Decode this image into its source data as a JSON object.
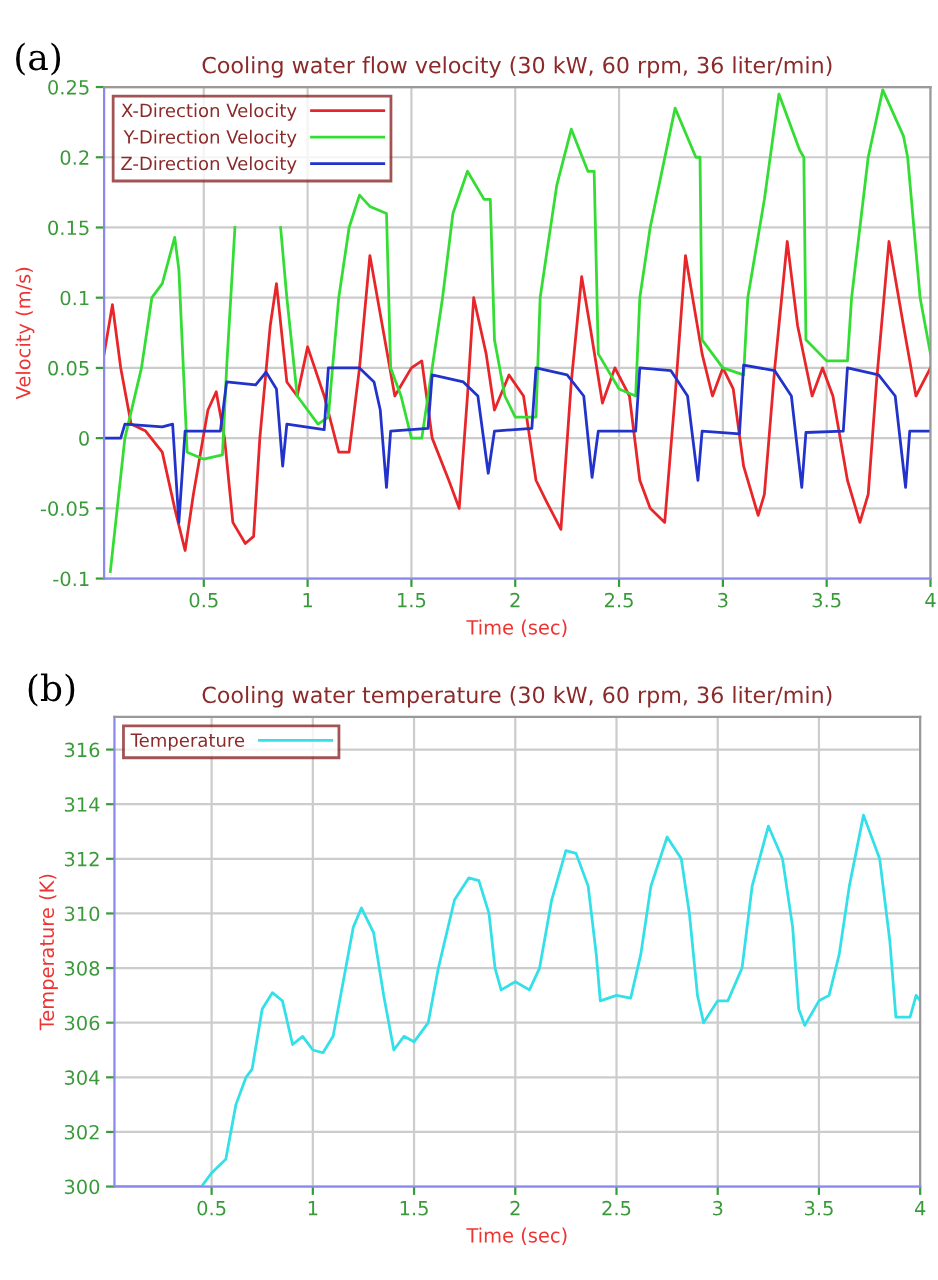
{
  "chart_data": [
    {
      "type": "line",
      "title": "Cooling water flow velocity (30 kW, 60 rpm, 36 liter/min)",
      "xlabel": "Time (sec)",
      "ylabel": "Velocity (m/s)",
      "annotations": [
        "(a)"
      ],
      "xlim": [
        0.02,
        4
      ],
      "ylim": [
        -0.1,
        0.25
      ],
      "xticks": [
        0.5,
        1,
        1.5,
        2,
        2.5,
        3,
        3.5,
        4
      ],
      "yticks": [
        -0.1,
        -0.05,
        0,
        0.05,
        0.1,
        0.15,
        0.2,
        0.25
      ],
      "grid": true,
      "legend": "top left",
      "series": [
        {
          "name": "X-Direction Velocity",
          "color": "#e8262a",
          "x": [
            0.02,
            0.06,
            0.1,
            0.15,
            0.22,
            0.3,
            0.36,
            0.41,
            0.45,
            0.52,
            0.56,
            0.6,
            0.64,
            0.7,
            0.74,
            0.77,
            0.82,
            0.85,
            0.9,
            0.95,
            1.0,
            1.08,
            1.15,
            1.2,
            1.25,
            1.3,
            1.36,
            1.42,
            1.5,
            1.55,
            1.6,
            1.68,
            1.73,
            1.77,
            1.8,
            1.86,
            1.9,
            1.97,
            2.04,
            2.1,
            2.15,
            2.22,
            2.27,
            2.32,
            2.36,
            2.42,
            2.48,
            2.55,
            2.6,
            2.65,
            2.72,
            2.77,
            2.82,
            2.9,
            2.95,
            3.0,
            3.05,
            3.1,
            3.17,
            3.2,
            3.25,
            3.31,
            3.36,
            3.43,
            3.48,
            3.53,
            3.6,
            3.66,
            3.7,
            3.74,
            3.8,
            3.87,
            3.93,
            4.0
          ],
          "values": [
            0.06,
            0.095,
            0.05,
            0.01,
            0.005,
            -0.01,
            -0.05,
            -0.08,
            -0.04,
            0.02,
            0.033,
            0.0,
            -0.06,
            -0.075,
            -0.07,
            0.0,
            0.08,
            0.11,
            0.04,
            0.03,
            0.065,
            0.03,
            -0.01,
            -0.01,
            0.05,
            0.13,
            0.08,
            0.03,
            0.05,
            0.055,
            0.0,
            -0.03,
            -0.05,
            0.03,
            0.1,
            0.06,
            0.02,
            0.045,
            0.03,
            -0.03,
            -0.045,
            -0.065,
            0.04,
            0.115,
            0.08,
            0.025,
            0.05,
            0.03,
            -0.03,
            -0.05,
            -0.06,
            0.03,
            0.13,
            0.06,
            0.03,
            0.05,
            0.035,
            -0.02,
            -0.055,
            -0.04,
            0.05,
            0.14,
            0.08,
            0.03,
            0.05,
            0.03,
            -0.03,
            -0.06,
            -0.04,
            0.04,
            0.14,
            0.08,
            0.03,
            0.05
          ]
        },
        {
          "name": "Y-Direction Velocity",
          "color": "#33dd33",
          "x": [
            0.05,
            0.12,
            0.2,
            0.25,
            0.3,
            0.36,
            0.38,
            0.42,
            0.5,
            0.59,
            0.61,
            0.65,
            0.72,
            0.8,
            0.85,
            0.87,
            0.9,
            0.95,
            1.05,
            1.1,
            1.12,
            1.15,
            1.2,
            1.25,
            1.3,
            1.38,
            1.4,
            1.45,
            1.5,
            1.55,
            1.6,
            1.65,
            1.7,
            1.77,
            1.85,
            1.88,
            1.9,
            1.95,
            2.0,
            2.1,
            2.12,
            2.15,
            2.2,
            2.27,
            2.35,
            2.38,
            2.4,
            2.5,
            2.58,
            2.6,
            2.65,
            2.77,
            2.87,
            2.89,
            2.9,
            3.0,
            3.1,
            3.12,
            3.2,
            3.27,
            3.37,
            3.39,
            3.4,
            3.5,
            3.6,
            3.62,
            3.7,
            3.77,
            3.87,
            3.89,
            3.95,
            4.0
          ],
          "values": [
            -0.095,
            0.0,
            0.05,
            0.1,
            0.11,
            0.143,
            0.12,
            -0.01,
            -0.015,
            -0.012,
            0.05,
            0.15,
            null,
            null,
            null,
            0.15,
            0.1,
            0.03,
            0.01,
            0.015,
            0.05,
            0.1,
            0.15,
            0.173,
            0.165,
            0.16,
            0.05,
            0.03,
            0.0,
            0.0,
            0.05,
            0.1,
            0.16,
            0.19,
            0.17,
            0.17,
            0.07,
            0.03,
            0.015,
            0.015,
            0.1,
            0.13,
            0.18,
            0.22,
            0.19,
            0.19,
            0.06,
            0.035,
            0.03,
            0.1,
            0.15,
            0.235,
            0.2,
            0.2,
            0.07,
            0.05,
            0.045,
            0.1,
            0.17,
            0.245,
            0.205,
            0.2,
            0.07,
            0.055,
            0.055,
            0.1,
            0.2,
            0.248,
            0.215,
            0.2,
            0.1,
            0.06
          ]
        },
        {
          "name": "Z-Direction Velocity",
          "color": "#2233cc",
          "x": [
            0.02,
            0.1,
            0.12,
            0.3,
            0.35,
            0.38,
            0.41,
            0.58,
            0.61,
            0.75,
            0.8,
            0.85,
            0.88,
            0.9,
            1.08,
            1.1,
            1.25,
            1.32,
            1.35,
            1.38,
            1.4,
            1.58,
            1.6,
            1.75,
            1.82,
            1.87,
            1.9,
            2.08,
            2.1,
            2.25,
            2.33,
            2.37,
            2.4,
            2.58,
            2.6,
            2.75,
            2.83,
            2.88,
            2.9,
            3.08,
            3.1,
            3.25,
            3.33,
            3.38,
            3.4,
            3.58,
            3.6,
            3.75,
            3.83,
            3.88,
            3.9,
            4.0
          ],
          "values": [
            0.0,
            0.0,
            0.01,
            0.008,
            0.01,
            -0.06,
            0.005,
            0.005,
            0.04,
            0.038,
            0.047,
            0.035,
            -0.02,
            0.01,
            0.006,
            0.05,
            0.05,
            0.04,
            0.02,
            -0.035,
            0.005,
            0.007,
            0.045,
            0.04,
            0.03,
            -0.025,
            0.005,
            0.007,
            0.05,
            0.045,
            0.03,
            -0.028,
            0.005,
            0.005,
            0.05,
            0.048,
            0.03,
            -0.03,
            0.005,
            0.003,
            0.052,
            0.048,
            0.03,
            -0.035,
            0.004,
            0.005,
            0.05,
            0.045,
            0.03,
            -0.035,
            0.005,
            0.005
          ]
        }
      ]
    },
    {
      "type": "line",
      "title": "Cooling water temperature (30 kW, 60 rpm, 36 liter/min)",
      "xlabel": "Time (sec)",
      "ylabel": "Temperature (K)",
      "annotations": [
        "(b)"
      ],
      "xlim": [
        0.02,
        4
      ],
      "ylim": [
        300,
        317.2
      ],
      "xticks": [
        0.5,
        1,
        1.5,
        2,
        2.5,
        3,
        3.5,
        4
      ],
      "yticks": [
        300,
        302,
        304,
        306,
        308,
        310,
        312,
        314,
        316
      ],
      "grid": true,
      "legend": "top left",
      "series": [
        {
          "name": "Temperature",
          "color": "#33e0e8",
          "x": [
            0.02,
            0.45,
            0.5,
            0.57,
            0.62,
            0.67,
            0.7,
            0.75,
            0.8,
            0.85,
            0.9,
            0.95,
            1.0,
            1.05,
            1.1,
            1.15,
            1.2,
            1.24,
            1.3,
            1.35,
            1.4,
            1.45,
            1.5,
            1.57,
            1.62,
            1.7,
            1.77,
            1.82,
            1.87,
            1.9,
            1.93,
            2.0,
            2.07,
            2.12,
            2.18,
            2.25,
            2.3,
            2.36,
            2.4,
            2.42,
            2.5,
            2.57,
            2.62,
            2.67,
            2.75,
            2.82,
            2.86,
            2.9,
            2.93,
            3.0,
            3.05,
            3.12,
            3.17,
            3.25,
            3.32,
            3.37,
            3.4,
            3.43,
            3.5,
            3.55,
            3.6,
            3.65,
            3.72,
            3.8,
            3.85,
            3.88,
            3.95,
            3.98,
            4.0
          ],
          "values": [
            300,
            300,
            300.5,
            301,
            303,
            304,
            304.3,
            306.5,
            307.1,
            306.8,
            305.2,
            305.5,
            305,
            304.9,
            305.5,
            307.5,
            309.5,
            310.2,
            309.3,
            307,
            305,
            305.5,
            305.3,
            306,
            308,
            310.5,
            311.3,
            311.2,
            310,
            308,
            307.2,
            307.5,
            307.2,
            308,
            310.5,
            312.3,
            312.2,
            311,
            308.5,
            306.8,
            307,
            306.9,
            308.5,
            311,
            312.8,
            312,
            310,
            307,
            306,
            306.8,
            306.8,
            308,
            311,
            313.2,
            312,
            309.5,
            306.5,
            305.9,
            306.8,
            307,
            308.5,
            311,
            313.6,
            312,
            309,
            306.2,
            306.2,
            307,
            306.8
          ]
        }
      ]
    }
  ]
}
